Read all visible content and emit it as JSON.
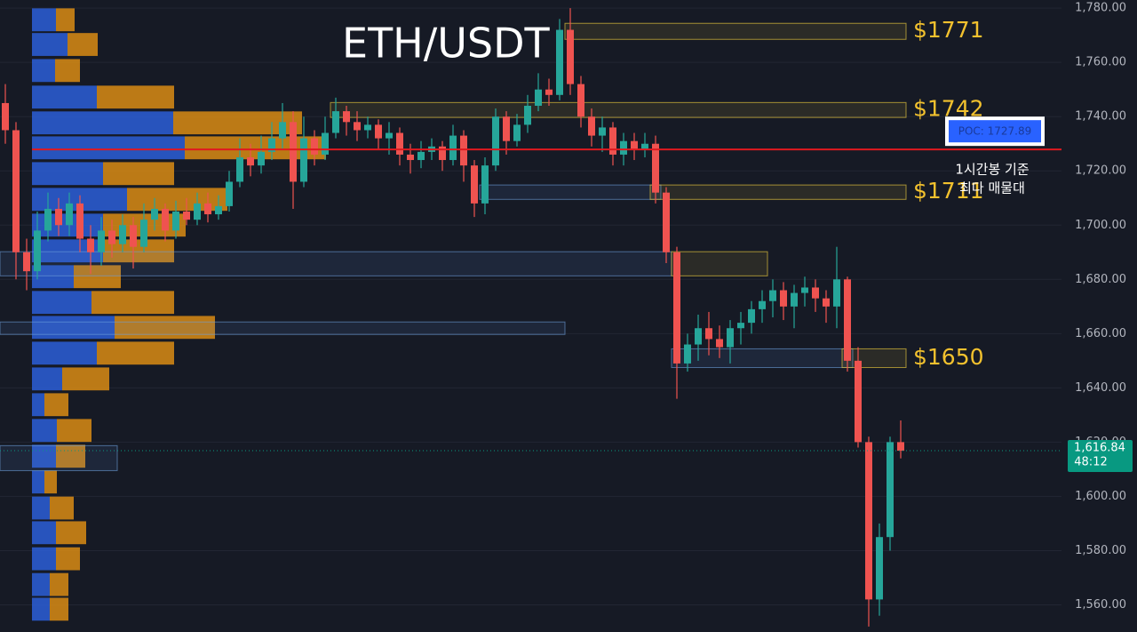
{
  "chart_data": {
    "type": "candlestick",
    "title": "ETH/USDT",
    "ylim": [
      1550,
      1783
    ],
    "yticks": [
      {
        "value": 1560,
        "label": "1,560.00"
      },
      {
        "value": 1580,
        "label": "1,580.00"
      },
      {
        "value": 1600,
        "label": "1,600.00"
      },
      {
        "value": 1620,
        "label": "1,620.00"
      },
      {
        "value": 1640,
        "label": "1,640.00"
      },
      {
        "value": 1660,
        "label": "1,660.00"
      },
      {
        "value": 1680,
        "label": "1,680.00"
      },
      {
        "value": 1700,
        "label": "1,700.00"
      },
      {
        "value": 1720,
        "label": "1,720.00"
      },
      {
        "value": 1740,
        "label": "1,740.00"
      },
      {
        "value": 1760,
        "label": "1,760.00"
      },
      {
        "value": 1780,
        "label": "1,780.00"
      }
    ],
    "grid": true,
    "up_color": "#26a69a",
    "down_color": "#ef5350",
    "candles": {
      "open": [
        1745,
        1735,
        1690,
        1683,
        1698,
        1706,
        1700,
        1708,
        1695,
        1690,
        1698,
        1693,
        1700,
        1692,
        1702,
        1706,
        1698,
        1705,
        1702,
        1708,
        1704,
        1707,
        1716,
        1725,
        1722,
        1727,
        1732,
        1738,
        1716,
        1732,
        1726,
        1734,
        1742,
        1738,
        1735,
        1737,
        1732,
        1734,
        1726,
        1724,
        1727,
        1729,
        1724,
        1733,
        1722,
        1708,
        1722,
        1740,
        1731,
        1737,
        1744,
        1750,
        1748,
        1772,
        1752,
        1740,
        1733,
        1736,
        1726,
        1731,
        1728,
        1730,
        1712,
        1690,
        1649,
        1656,
        1662,
        1658,
        1655,
        1662,
        1664,
        1669,
        1672,
        1676,
        1670,
        1675,
        1677,
        1673,
        1670,
        1680,
        1650,
        1620,
        1562,
        1585,
        1620
      ],
      "high": [
        1752,
        1738,
        1695,
        1705,
        1712,
        1710,
        1712,
        1711,
        1700,
        1703,
        1702,
        1704,
        1703,
        1708,
        1710,
        1708,
        1709,
        1710,
        1712,
        1712,
        1711,
        1720,
        1732,
        1730,
        1733,
        1738,
        1745,
        1742,
        1740,
        1735,
        1740,
        1747,
        1744,
        1742,
        1740,
        1739,
        1738,
        1736,
        1730,
        1731,
        1732,
        1731,
        1737,
        1735,
        1724,
        1725,
        1743,
        1742,
        1741,
        1748,
        1756,
        1754,
        1776,
        1780,
        1755,
        1743,
        1740,
        1738,
        1734,
        1734,
        1734,
        1733,
        1714,
        1692,
        1660,
        1667,
        1668,
        1663,
        1665,
        1668,
        1672,
        1676,
        1680,
        1679,
        1678,
        1681,
        1680,
        1676,
        1692,
        1681,
        1655,
        1622,
        1590,
        1622,
        1628
      ],
      "low": [
        1730,
        1680,
        1676,
        1680,
        1694,
        1696,
        1696,
        1690,
        1682,
        1685,
        1688,
        1690,
        1684,
        1690,
        1698,
        1694,
        1695,
        1700,
        1700,
        1701,
        1702,
        1705,
        1714,
        1718,
        1719,
        1724,
        1728,
        1706,
        1714,
        1722,
        1724,
        1732,
        1733,
        1731,
        1732,
        1728,
        1726,
        1722,
        1719,
        1721,
        1724,
        1720,
        1722,
        1716,
        1703,
        1704,
        1720,
        1726,
        1729,
        1734,
        1742,
        1744,
        1746,
        1748,
        1736,
        1729,
        1727,
        1722,
        1722,
        1724,
        1725,
        1708,
        1686,
        1636,
        1646,
        1650,
        1652,
        1651,
        1649,
        1656,
        1660,
        1664,
        1666,
        1665,
        1662,
        1670,
        1668,
        1664,
        1662,
        1646,
        1618,
        1552,
        1556,
        1580,
        1614
      ],
      "close": [
        1735,
        1690,
        1683,
        1698,
        1706,
        1700,
        1708,
        1695,
        1690,
        1698,
        1693,
        1700,
        1692,
        1702,
        1706,
        1698,
        1705,
        1702,
        1708,
        1704,
        1707,
        1716,
        1725,
        1722,
        1727,
        1732,
        1738,
        1716,
        1732,
        1726,
        1734,
        1742,
        1738,
        1735,
        1737,
        1732,
        1734,
        1726,
        1724,
        1727,
        1729,
        1724,
        1733,
        1722,
        1708,
        1722,
        1740,
        1731,
        1737,
        1744,
        1750,
        1748,
        1772,
        1752,
        1740,
        1733,
        1736,
        1726,
        1731,
        1728,
        1730,
        1712,
        1690,
        1649,
        1656,
        1662,
        1658,
        1655,
        1662,
        1664,
        1669,
        1672,
        1676,
        1670,
        1675,
        1677,
        1673,
        1670,
        1680,
        1650,
        1620,
        1562,
        1585,
        1620,
        1616.84
      ]
    },
    "zones": [
      {
        "kind": "resistance",
        "start": 53,
        "end": 84,
        "low": 1768.5,
        "high": 1774.4,
        "label": "$1771"
      },
      {
        "kind": "resistance",
        "start": 31,
        "end": 84,
        "low": 1739.7,
        "high": 1745.2,
        "label": "$1742"
      },
      {
        "kind": "support",
        "start": 45,
        "end": 61,
        "low": 1709.5,
        "high": 1714.8
      },
      {
        "kind": "resistance",
        "start": 61,
        "end": 84,
        "low": 1709.5,
        "high": 1714.8,
        "label": "$1711"
      },
      {
        "kind": "support",
        "start": 0,
        "end": 62,
        "low": 1681.3,
        "high": 1690.2
      },
      {
        "kind": "resistance",
        "start": 63,
        "end": 71,
        "low": 1681.3,
        "high": 1690.2
      },
      {
        "kind": "support",
        "start": 0,
        "end": 52,
        "low": 1659.7,
        "high": 1664.3
      },
      {
        "kind": "support",
        "start": 63,
        "end": 79,
        "low": 1647.5,
        "high": 1654.4
      },
      {
        "kind": "resistance",
        "start": 79,
        "end": 84,
        "low": 1647.5,
        "high": 1654.4,
        "label": "$1650"
      },
      {
        "kind": "support",
        "start": 0,
        "end": 10,
        "low": 1609.5,
        "high": 1618.7
      }
    ],
    "profile": {
      "price": [
        1775.7,
        1766.6,
        1757,
        1747.2,
        1737.7,
        1728.5,
        1719,
        1709.5,
        1700,
        1690.5,
        1681,
        1671.5,
        1662.3,
        1652.8,
        1643.3,
        1633.8,
        1624.3,
        1614.8,
        1605.3,
        1595.7,
        1586.6,
        1577,
        1567.5,
        1558.4
      ],
      "buy": [
        27,
        40,
        26,
        73,
        159,
        172,
        80,
        107,
        80,
        80,
        47,
        67,
        93,
        73,
        34,
        14,
        28,
        27,
        14,
        20,
        27,
        27,
        20,
        20
      ],
      "sell": [
        21,
        34,
        28,
        87,
        145,
        159,
        80,
        113,
        93,
        80,
        53,
        93,
        113,
        87,
        53,
        27,
        39,
        33,
        14,
        27,
        34,
        27,
        21,
        21
      ],
      "buy_color": "#2c5fd8",
      "sell_color": "#d98c14"
    },
    "poc": {
      "value": 1727.89,
      "label": "POC: 1727.89",
      "color": "#e0191f",
      "note": [
        "1시간봉 기준",
        "최다 매물대"
      ]
    },
    "last_price": {
      "value": 1616.84,
      "label": "1,616.84",
      "timer": "48:12",
      "color": "#089981"
    }
  }
}
